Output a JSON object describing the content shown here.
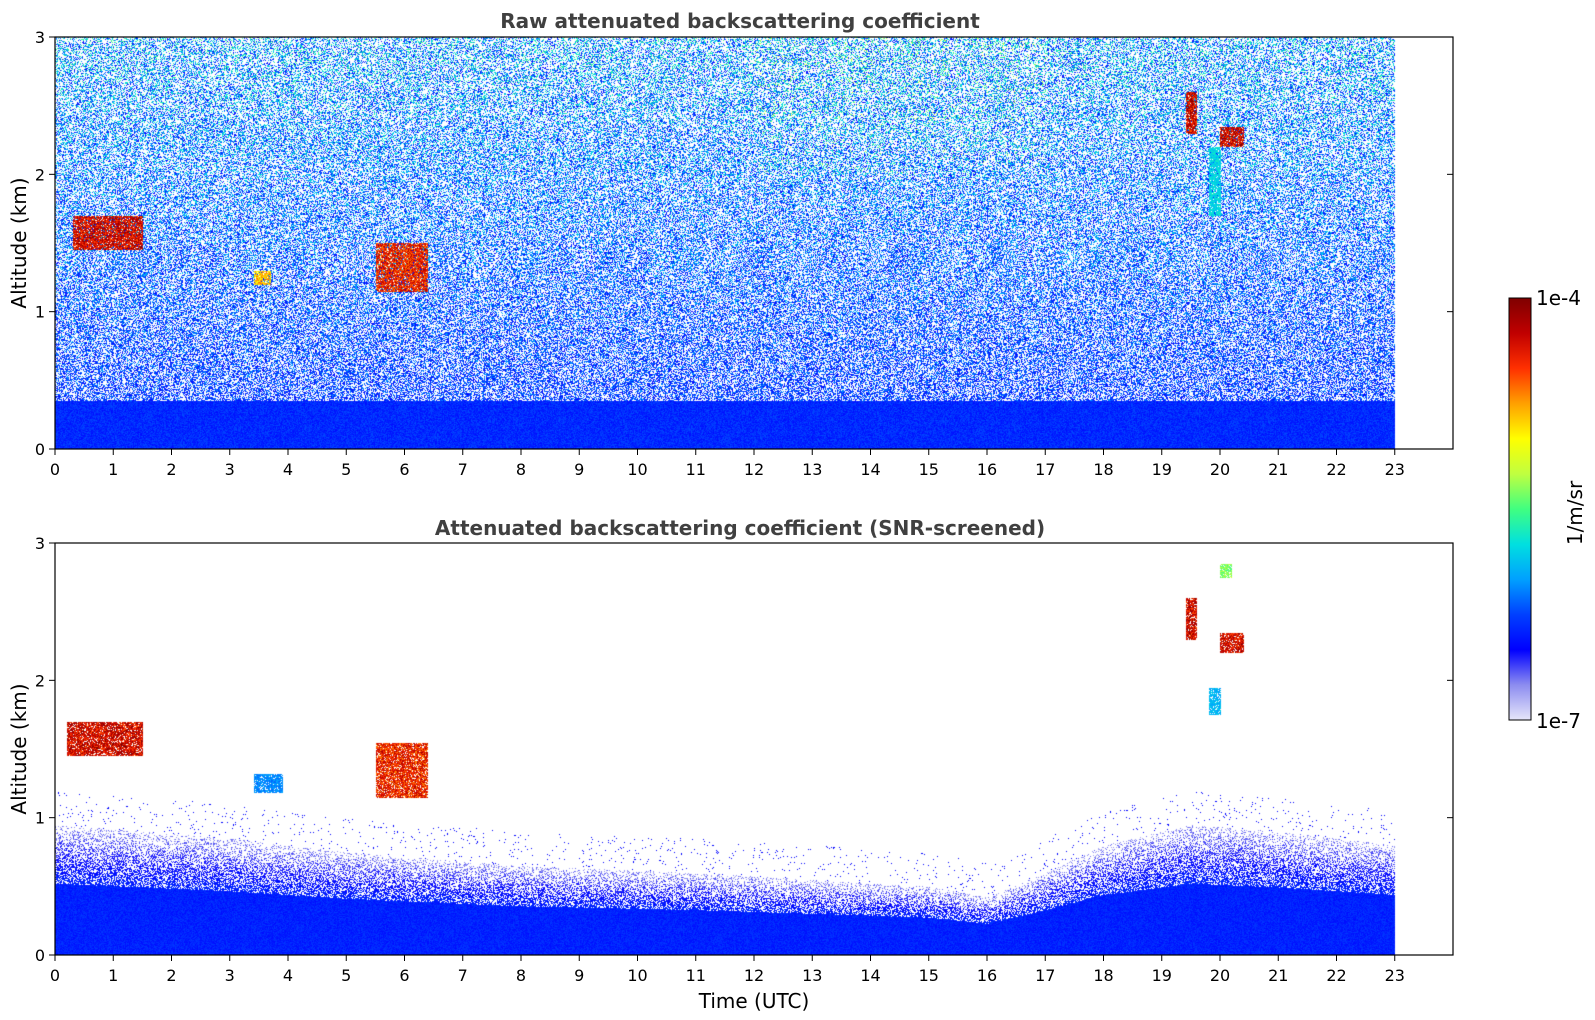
{
  "chart_data": [
    {
      "type": "heatmap",
      "title": "Raw attenuated backscattering coefficient",
      "xlabel": "",
      "ylabel": "Altitude (km)",
      "xlim": [
        0,
        24
      ],
      "ylim": [
        0,
        3
      ],
      "data_end_x": 23,
      "xticks": [
        "0",
        "1",
        "2",
        "3",
        "4",
        "5",
        "6",
        "7",
        "8",
        "9",
        "10",
        "11",
        "12",
        "13",
        "14",
        "15",
        "16",
        "17",
        "18",
        "19",
        "20",
        "21",
        "22",
        "23"
      ],
      "yticks": [
        "0",
        "1",
        "2",
        "3"
      ],
      "features": [
        {
          "name": "cloud",
          "x": [
            0.3,
            1.5
          ],
          "y": [
            1.45,
            1.7
          ],
          "level": 1.0
        },
        {
          "name": "cloud",
          "x": [
            3.4,
            3.7
          ],
          "y": [
            1.2,
            1.3
          ],
          "level": 0.8
        },
        {
          "name": "cloud",
          "x": [
            5.5,
            6.4
          ],
          "y": [
            1.15,
            1.5
          ],
          "level": 0.95
        },
        {
          "name": "cloud",
          "x": [
            19.4,
            19.6
          ],
          "y": [
            2.3,
            2.6
          ],
          "level": 1.0
        },
        {
          "name": "cloud",
          "x": [
            20.0,
            20.4
          ],
          "y": [
            2.2,
            2.35
          ],
          "level": 1.0
        },
        {
          "name": "aerosol",
          "x": [
            19.8,
            20.0
          ],
          "y": [
            1.7,
            2.2
          ],
          "level": 0.45
        }
      ]
    },
    {
      "type": "heatmap",
      "title": "Attenuated backscattering coefficient (SNR-screened)",
      "xlabel": "Time (UTC)",
      "ylabel": "Altitude (km)",
      "xlim": [
        0,
        24
      ],
      "ylim": [
        0,
        3
      ],
      "data_end_x": 23,
      "xticks": [
        "0",
        "1",
        "2",
        "3",
        "4",
        "5",
        "6",
        "7",
        "8",
        "9",
        "10",
        "11",
        "12",
        "13",
        "14",
        "15",
        "16",
        "17",
        "18",
        "19",
        "20",
        "21",
        "22",
        "23"
      ],
      "yticks": [
        "0",
        "1",
        "2",
        "3"
      ],
      "boundary_layer_top_km": [
        [
          0,
          0.95
        ],
        [
          3,
          0.85
        ],
        [
          5,
          0.75
        ],
        [
          8,
          0.65
        ],
        [
          11,
          0.6
        ],
        [
          13,
          0.55
        ],
        [
          15,
          0.5
        ],
        [
          16,
          0.42
        ],
        [
          17,
          0.6
        ],
        [
          18,
          0.8
        ],
        [
          19.5,
          0.95
        ],
        [
          21,
          0.9
        ],
        [
          23,
          0.8
        ]
      ],
      "features": [
        {
          "name": "cloud",
          "x": [
            0.2,
            1.5
          ],
          "y": [
            1.45,
            1.7
          ],
          "level": 1.0
        },
        {
          "name": "cloud",
          "x": [
            3.4,
            3.9
          ],
          "y": [
            1.18,
            1.32
          ],
          "level": 0.35
        },
        {
          "name": "cloud",
          "x": [
            5.5,
            6.4
          ],
          "y": [
            1.15,
            1.55
          ],
          "level": 0.95
        },
        {
          "name": "cloud",
          "x": [
            19.4,
            19.6
          ],
          "y": [
            2.3,
            2.6
          ],
          "level": 1.0
        },
        {
          "name": "cloud",
          "x": [
            20.0,
            20.4
          ],
          "y": [
            2.2,
            2.35
          ],
          "level": 1.0
        },
        {
          "name": "aerosol",
          "x": [
            19.8,
            20.0
          ],
          "y": [
            1.75,
            1.95
          ],
          "level": 0.4
        },
        {
          "name": "aerosol",
          "x": [
            20.0,
            20.2
          ],
          "y": [
            2.75,
            2.85
          ],
          "level": 0.6
        }
      ]
    }
  ],
  "colorbar": {
    "min_label": "1e-7",
    "max_label": "1e-4",
    "unit_label": "1/m/sr",
    "scale": "log",
    "stops": [
      "#e6e6fa",
      "#8c8cf0",
      "#0000ff",
      "#0040ff",
      "#00a0ff",
      "#00e0e0",
      "#40ff80",
      "#c0ff40",
      "#ffff00",
      "#ffa000",
      "#ff3000",
      "#c00000",
      "#7f0000"
    ]
  }
}
